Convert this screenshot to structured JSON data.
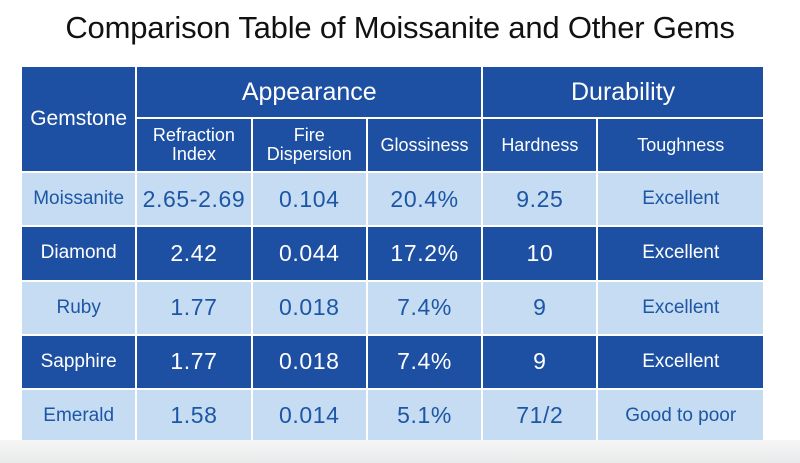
{
  "title": "Comparison Table of Moissanite and Other Gems",
  "table": {
    "header": {
      "gemstone": "Gemstone",
      "appearance": "Appearance",
      "durability": "Durability",
      "refraction_index": "Refraction Index",
      "fire_dispersion": "Fire Dispersion",
      "glossiness": "Glossiness",
      "hardness": "Hardness",
      "toughness": "Toughness"
    },
    "rows": [
      {
        "gem": "Moissanite",
        "refraction": "2.65-2.69",
        "dispersion": "0.104",
        "glossiness": "20.4%",
        "hardness": "9.25",
        "toughness": "Excellent"
      },
      {
        "gem": "Diamond",
        "refraction": "2.42",
        "dispersion": "0.044",
        "glossiness": "17.2%",
        "hardness": "10",
        "toughness": "Excellent"
      },
      {
        "gem": "Ruby",
        "refraction": "1.77",
        "dispersion": "0.018",
        "glossiness": "7.4%",
        "hardness": "9",
        "toughness": "Excellent"
      },
      {
        "gem": "Sapphire",
        "refraction": "1.77",
        "dispersion": "0.018",
        "glossiness": "7.4%",
        "hardness": "9",
        "toughness": "Excellent"
      },
      {
        "gem": "Emerald",
        "refraction": "1.58",
        "dispersion": "0.014",
        "glossiness": "5.1%",
        "hardness": "71/2",
        "toughness": "Good to poor"
      }
    ]
  },
  "colors": {
    "header_dark": "#1d4fa3",
    "row_light": "#c5dcf2",
    "row_light_text": "#1d56a6",
    "row_dark_text": "#ffffff"
  }
}
